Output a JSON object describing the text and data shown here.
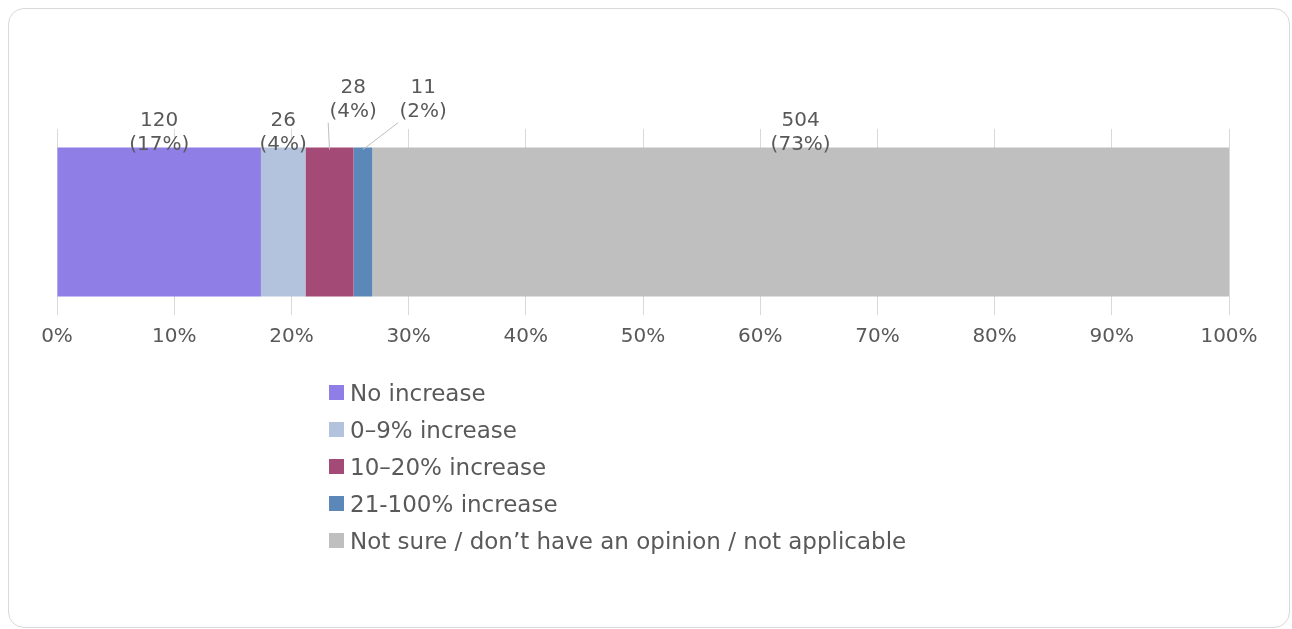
{
  "chart_data": {
    "type": "bar",
    "orientation": "horizontal",
    "stacked": true,
    "categories": [
      null
    ],
    "series": [
      {
        "name": "No increase",
        "color": "#8e7ee6",
        "values": [
          17.4
        ],
        "value_labels": [
          "120\n(17%)"
        ]
      },
      {
        "name": "0–9% increase",
        "color": "#b4c3dd",
        "values": [
          3.8
        ],
        "value_labels": [
          "26\n(4%)"
        ]
      },
      {
        "name": "10–20% increase",
        "color": "#a34a77",
        "values": [
          4.1
        ],
        "value_labels": [
          "28\n(4%)"
        ]
      },
      {
        "name": "21-100% increase",
        "color": "#5b87b9",
        "values": [
          1.6
        ],
        "value_labels": [
          "11\n(2%)"
        ]
      },
      {
        "name": "Not sure / don’t have an opinion / not applicable",
        "color": "#bfbfbf",
        "values": [
          73.1
        ],
        "value_labels": [
          "504\n(73%)"
        ]
      }
    ],
    "xlim": [
      0,
      100
    ],
    "xticks": [
      {
        "value": 0,
        "label": "0%"
      },
      {
        "value": 10,
        "label": "10%"
      },
      {
        "value": 20,
        "label": "20%"
      },
      {
        "value": 30,
        "label": "30%"
      },
      {
        "value": 40,
        "label": "40%"
      },
      {
        "value": 50,
        "label": "50%"
      },
      {
        "value": 60,
        "label": "60%"
      },
      {
        "value": 70,
        "label": "70%"
      },
      {
        "value": 80,
        "label": "80%"
      },
      {
        "value": 90,
        "label": "90%"
      },
      {
        "value": 100,
        "label": "100%"
      }
    ],
    "grid": "x",
    "legend": "bottom"
  }
}
